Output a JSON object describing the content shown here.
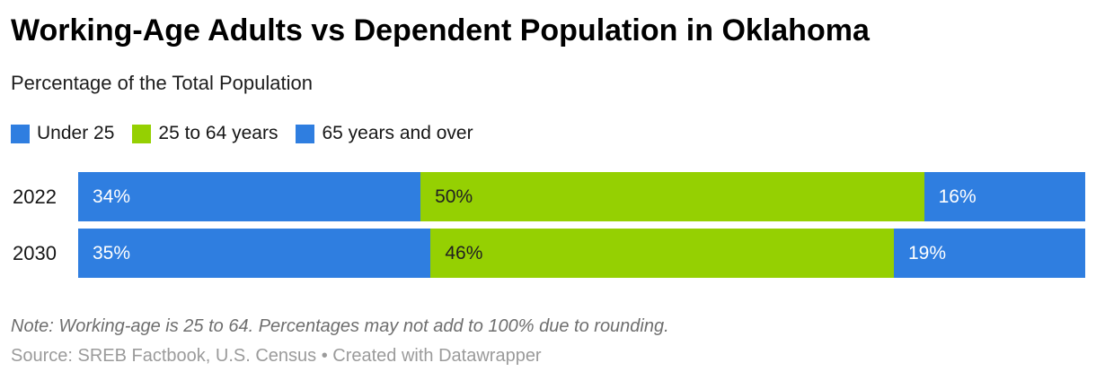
{
  "header": {
    "title": "Working-Age Adults vs Dependent Population in Oklahoma",
    "subtitle": "Percentage of the Total Population"
  },
  "colors": {
    "blue": "#2f7ee0",
    "green": "#95d002",
    "label_on_blue": "#ffffff",
    "label_on_green": "#212121",
    "title_text": "#000000",
    "note_text": "#6e6e6e",
    "source_text": "#9b9b9b"
  },
  "chart_data": {
    "type": "bar",
    "orientation": "horizontal",
    "stacked": true,
    "title": "Working-Age Adults vs Dependent Population in Oklahoma",
    "subtitle": "Percentage of the Total Population",
    "categories": [
      "2022",
      "2030"
    ],
    "series": [
      {
        "name": "Under 25",
        "color_key": "blue",
        "values": [
          34,
          35
        ]
      },
      {
        "name": "25 to 64 years",
        "color_key": "green",
        "values": [
          50,
          46
        ]
      },
      {
        "name": "65 years and over",
        "color_key": "blue",
        "values": [
          16,
          19
        ]
      }
    ],
    "value_suffix": "%",
    "xlim": [
      0,
      100
    ],
    "legend_position": "top",
    "grid": false
  },
  "footer": {
    "note": "Note: Working-age is 25 to 64. Percentages may not add to 100% due to rounding.",
    "source": "Source: SREB Factbook, U.S. Census • Created with Datawrapper"
  }
}
